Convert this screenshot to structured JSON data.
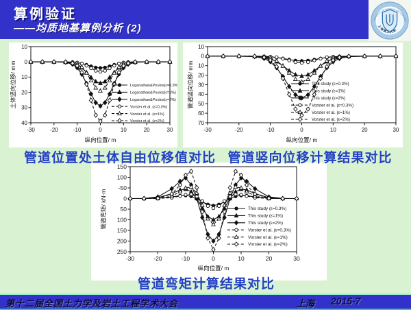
{
  "header": {
    "title": "算例验证",
    "subtitle": "——均质地基算例分析 (2)"
  },
  "logo": {
    "ring_text": "UNIVERSITY OF SHANGHAI FOR SCIENCE AND TECHNOLOGY",
    "cn_text": "上海理工大学"
  },
  "captions": {
    "chart1": "管道位置处土体自由位移值对比",
    "chart2": "管道竖向位移计算结果对比",
    "chart3": "管道弯矩计算结果对比"
  },
  "footer": {
    "left": "第十二届全国土力学及岩土工程学术大会",
    "city": "上海",
    "date": "2015-7"
  },
  "colors": {
    "band_blue": "#3232cb",
    "content_green": "#d9f3d2",
    "caption_blue": "#2440c4",
    "footer_text": "#0b0b38",
    "accent_teal": "#38c8a8",
    "plot_ink": "#111111"
  },
  "chart_data": [
    {
      "type": "line",
      "caption": "管道位置处土体自由位移值对比",
      "xlabel": "纵向位置/ m",
      "ylabel": "土体竖向位移/ mm",
      "xlim": [
        -30,
        30
      ],
      "ylim_top_bottom": [
        -10,
        40
      ],
      "y_down_positive": true,
      "grid": false,
      "legend_position": "inside-right",
      "xticks": [
        "-30",
        "-20",
        "-10",
        "0",
        "10",
        "20",
        "30"
      ],
      "yticks": [
        {
          "v": -10,
          "label": "10"
        },
        {
          "v": 0,
          "label": "0"
        },
        {
          "v": 10,
          "label": "10"
        },
        {
          "v": 20,
          "label": "20"
        },
        {
          "v": 30,
          "label": "30"
        },
        {
          "v": 40,
          "label": "40"
        }
      ],
      "x": [
        -30,
        -25,
        -20,
        -15,
        -12,
        -10,
        -8,
        -6,
        -4,
        -2,
        0,
        2,
        4,
        6,
        8,
        10,
        12,
        15,
        20,
        25,
        30
      ],
      "series": [
        {
          "name": "Loganathan&Poulos(ε=0.3%)",
          "line": "solid",
          "marker": "circle",
          "fill": "filled",
          "values": [
            0,
            0,
            0,
            0,
            0.2,
            0.5,
            1.1,
            1.9,
            2.9,
            3.7,
            4,
            3.7,
            2.9,
            1.9,
            1.1,
            0.5,
            0.2,
            0,
            0,
            0,
            0
          ]
        },
        {
          "name": "Loganathan&Poulos(ε=1%)",
          "line": "solid",
          "marker": "triangle",
          "fill": "filled",
          "values": [
            0,
            0,
            0,
            0.2,
            0.8,
            1.9,
            3.9,
            6.8,
            10.2,
            12.9,
            14,
            12.9,
            10.2,
            6.8,
            3.9,
            1.9,
            0.8,
            0.2,
            0,
            0,
            0
          ]
        },
        {
          "name": "Loganathan&Poulos(ε=2%)",
          "line": "solid",
          "marker": "diamond",
          "fill": "filled",
          "values": [
            0,
            0,
            0,
            0.3,
            1.6,
            3.9,
            8.1,
            14.1,
            21.1,
            26.8,
            29,
            26.8,
            21.1,
            14.1,
            8.1,
            3.9,
            1.6,
            0.3,
            0,
            0,
            0
          ]
        },
        {
          "name": "Vorster et al. (ε=0.3%)",
          "line": "dashed",
          "marker": "circle",
          "fill": "open",
          "values": [
            0,
            0,
            0,
            0,
            0.2,
            0.5,
            1.2,
            2.5,
            4.2,
            5.8,
            6.5,
            5.8,
            4.2,
            2.5,
            1.2,
            0.5,
            0.2,
            0,
            0,
            0,
            0
          ]
        },
        {
          "name": "Vorster et al. (ε=1%)",
          "line": "dashed",
          "marker": "triangle",
          "fill": "open",
          "values": [
            0,
            0,
            0,
            0,
            0.4,
            1.3,
            3.4,
            7.2,
            12.3,
            17,
            19,
            17,
            12.3,
            7.2,
            3.4,
            1.3,
            0.4,
            0,
            0,
            0,
            0
          ]
        },
        {
          "name": "Vorster et al. (ε=2%)",
          "line": "dashed",
          "marker": "diamond",
          "fill": "open",
          "values": [
            0,
            0,
            0,
            0.1,
            0.9,
            2.6,
            6.9,
            14.7,
            25.3,
            35,
            39,
            35,
            25.3,
            14.7,
            6.9,
            2.6,
            0.9,
            0.1,
            0,
            0,
            0
          ]
        }
      ]
    },
    {
      "type": "line",
      "caption": "管道竖向位移计算结果对比",
      "xlabel": "纵向位置/ m",
      "ylabel": "管道竖向位移/ mm",
      "xlim": [
        -30,
        30
      ],
      "ylim_top_bottom": [
        -10,
        70
      ],
      "y_down_positive": true,
      "grid": false,
      "legend_position": "inside-right",
      "xticks": [
        "-30",
        "-20",
        "-10",
        "0",
        "10",
        "20",
        "30"
      ],
      "yticks": [
        {
          "v": -10,
          "label": "10"
        },
        {
          "v": 0,
          "label": "0"
        },
        {
          "v": 10,
          "label": "10"
        },
        {
          "v": 20,
          "label": "20"
        },
        {
          "v": 30,
          "label": "30"
        },
        {
          "v": 40,
          "label": "40"
        },
        {
          "v": 50,
          "label": "50"
        },
        {
          "v": 60,
          "label": "60"
        },
        {
          "v": 70,
          "label": "70"
        }
      ],
      "x": [
        -30,
        -25,
        -20,
        -15,
        -12,
        -10,
        -8,
        -6,
        -4,
        -2,
        0,
        2,
        4,
        6,
        8,
        10,
        12,
        15,
        20,
        25,
        30
      ],
      "series": [
        {
          "name": "This study (ε=0.3%)",
          "line": "solid",
          "marker": "circle",
          "fill": "filled",
          "values": [
            0,
            0,
            0,
            0.1,
            0.3,
            0.7,
            1.4,
            2.4,
            3.6,
            4.6,
            5,
            4.6,
            3.6,
            2.4,
            1.4,
            0.7,
            0.3,
            0.1,
            0,
            0,
            0
          ]
        },
        {
          "name": "This study (ε=1%)",
          "line": "solid",
          "marker": "triangle",
          "fill": "filled",
          "values": [
            0,
            0,
            0,
            0.2,
            1.2,
            2.8,
            5.8,
            10.2,
            15.2,
            19.4,
            21,
            19.4,
            15.2,
            10.2,
            5.8,
            2.8,
            1.2,
            0.2,
            0,
            0,
            0
          ]
        },
        {
          "name": "This study (ε=2%)",
          "line": "solid",
          "marker": "diamond",
          "fill": "filled",
          "values": [
            0,
            0,
            0,
            0.5,
            2.5,
            5.9,
            12.2,
            21.4,
            31.9,
            40.6,
            44,
            40.6,
            31.9,
            21.4,
            12.2,
            5.9,
            2.5,
            0.5,
            0,
            0,
            0
          ]
        },
        {
          "name": "Vorster et al. (ε=0.3%)",
          "line": "dashed",
          "marker": "circle",
          "fill": "open",
          "values": [
            0,
            0,
            0,
            0,
            0.2,
            0.5,
            1.2,
            2.7,
            4.5,
            6.3,
            7,
            6.3,
            4.5,
            2.7,
            1.2,
            0.5,
            0.2,
            0,
            0,
            0,
            0
          ]
        },
        {
          "name": "Vorster et al. (ε=1%)",
          "line": "dashed",
          "marker": "triangle",
          "fill": "open",
          "values": [
            0,
            0,
            0,
            0.1,
            0.6,
            1.8,
            4.8,
            10.2,
            17.5,
            24.2,
            27,
            24.2,
            17.5,
            10.2,
            4.8,
            1.8,
            0.6,
            0.1,
            0,
            0,
            0
          ]
        },
        {
          "name": "Vorster et al. (ε=2%)",
          "line": "dashed",
          "marker": "diamond",
          "fill": "open",
          "values": [
            0,
            0,
            0,
            0.1,
            1.3,
            4.2,
            11,
            23.4,
            40.2,
            55.6,
            62,
            55.6,
            40.2,
            23.4,
            11,
            4.2,
            1.3,
            0.1,
            0,
            0,
            0
          ]
        }
      ]
    },
    {
      "type": "line",
      "caption": "管道弯矩计算结果对比",
      "xlabel": "纵向位置/ m",
      "ylabel": "管道弯矩/ kN·m",
      "xlim": [
        -30,
        30
      ],
      "ylim_top_bottom": [
        -150,
        250
      ],
      "y_down_positive": true,
      "grid": false,
      "legend_position": "inside-right-bottom",
      "xticks": [
        "-30",
        "-20",
        "-10",
        "0",
        "10",
        "20",
        "30"
      ],
      "yticks": [
        {
          "v": -150,
          "label": "150"
        },
        {
          "v": -100,
          "label": "100"
        },
        {
          "v": -50,
          "label": "-50"
        },
        {
          "v": 0,
          "label": "0"
        },
        {
          "v": 50,
          "label": "50"
        },
        {
          "v": 100,
          "label": "100"
        },
        {
          "v": 150,
          "label": "150"
        },
        {
          "v": 200,
          "label": "200"
        },
        {
          "v": 250,
          "label": "250"
        }
      ],
      "x": [
        -30,
        -25,
        -20,
        -15,
        -12,
        -10,
        -8,
        -6,
        -4,
        -2,
        0,
        2,
        4,
        6,
        8,
        10,
        12,
        15,
        20,
        25,
        30
      ],
      "series": [
        {
          "name": "This study (ε=0.3%)",
          "line": "solid",
          "marker": "circle",
          "fill": "filled",
          "values": [
            0,
            -0.1,
            -1.3,
            -7.6,
            -13.4,
            -14.6,
            -10.6,
            0,
            14.7,
            27.8,
            33,
            27.8,
            14.7,
            0,
            -10.6,
            -14.6,
            -13.4,
            -7.6,
            -1.3,
            -0.1,
            0
          ]
        },
        {
          "name": "This study (ε=1%)",
          "line": "solid",
          "marker": "triangle",
          "fill": "filled",
          "values": [
            0,
            -0.3,
            -3.9,
            -23.1,
            -40.6,
            -44.3,
            -32,
            0,
            44.5,
            84.1,
            100,
            84.1,
            44.5,
            0,
            -32,
            -44.3,
            -40.6,
            -23.1,
            -3.9,
            -0.3,
            0
          ]
        },
        {
          "name": "This study (ε=2%)",
          "line": "solid",
          "marker": "diamond",
          "fill": "filled",
          "values": [
            0,
            -0.6,
            -7.8,
            -46.2,
            -81.2,
            -97,
            -64,
            0,
            89,
            168,
            200,
            168,
            89,
            0,
            -64,
            -97,
            -81.2,
            -46.2,
            -7.8,
            -0.6,
            0
          ]
        },
        {
          "name": "Vorster et al. (ε=0.3%)",
          "line": "dashed",
          "marker": "circle",
          "fill": "open",
          "values": [
            0,
            0,
            -0.2,
            -4,
            -12,
            -18.3,
            -20,
            -9.6,
            11.7,
            34.9,
            45,
            34.9,
            11.7,
            -9.6,
            -20,
            -18.3,
            -12,
            -4,
            -0.2,
            0,
            0
          ]
        },
        {
          "name": "Vorster et al. (ε=1%)",
          "line": "dashed",
          "marker": "triangle",
          "fill": "open",
          "values": [
            0,
            0,
            -0.6,
            -11,
            -33,
            -50,
            -55,
            -26.1,
            31.8,
            94.6,
            122,
            94.6,
            31.8,
            -26.1,
            -55,
            -50,
            -33,
            -11,
            -0.6,
            0,
            0
          ]
        },
        {
          "name": "Vorster et al. (ε=2%)",
          "line": "dashed",
          "marker": "diamond",
          "fill": "open",
          "values": [
            0,
            0,
            -1.2,
            -21.4,
            -64,
            -110,
            -128,
            -51.4,
            62.6,
            186,
            240,
            186,
            62.6,
            -51.4,
            -128,
            -110,
            -64,
            -21.4,
            -1.2,
            0,
            0
          ]
        }
      ]
    }
  ]
}
